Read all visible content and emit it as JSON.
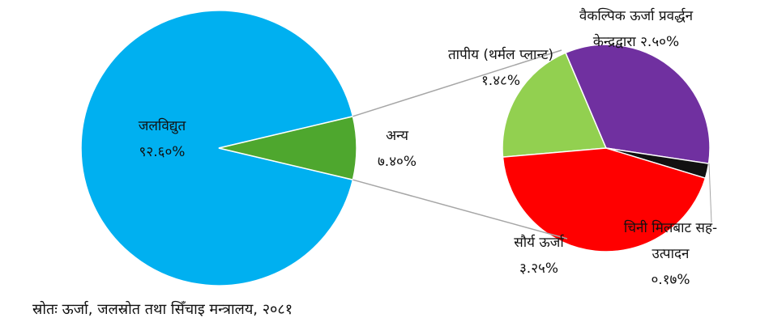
{
  "chart_data": [
    {
      "type": "pie",
      "categories": [
        "जलविद्युत",
        "अन्य"
      ],
      "values": [
        92.6,
        7.4
      ],
      "value_labels": [
        "९२.६०%",
        "७.४०%"
      ],
      "colors": [
        "#00b0f0",
        "#4ea72e"
      ]
    },
    {
      "type": "pie",
      "categories": [
        "तापीय (थर्मल प्लान्ट)",
        "वैकल्पिक ऊर्जा प्रवर्द्धन केन्द्रद्वारा",
        "चिनी मिलबाट सह-उत्पादन",
        "सौर्य ऊर्जा"
      ],
      "values": [
        1.48,
        2.5,
        0.17,
        3.25
      ],
      "value_labels": [
        "१.४८%",
        "२.५०%",
        "०.१७%",
        "३.२५%"
      ],
      "colors": [
        "#92d050",
        "#7030a0",
        "#111111",
        "#ff0000"
      ]
    }
  ],
  "source": "स्रोतः ऊर्जा, जलस्रोत तथा सिँचाइ मन्त्रालय, २०८१"
}
